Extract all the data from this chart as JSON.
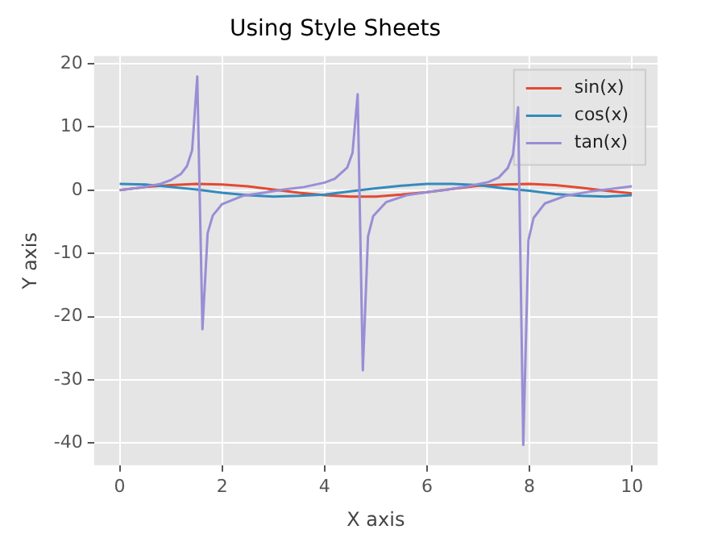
{
  "chart_data": {
    "type": "line",
    "title": "Using Style Sheets",
    "xlabel": "X axis",
    "ylabel": "Y axis",
    "xlim": [
      -0.5,
      10.5
    ],
    "xticks": [
      0,
      2,
      4,
      6,
      8,
      10
    ],
    "ylim": [
      -43.5,
      21.2
    ],
    "yticks": [
      -40,
      -30,
      -20,
      -10,
      0,
      10,
      20
    ],
    "grid": true,
    "legend": "top right",
    "series": [
      {
        "name": "sin(x)",
        "color": "#e24a33",
        "x": [
          0,
          0.5,
          1,
          1.5,
          2,
          2.5,
          3,
          3.5,
          4,
          4.5,
          5,
          5.5,
          6,
          6.5,
          7,
          7.5,
          8,
          8.5,
          9,
          9.5,
          10
        ],
        "values": [
          0,
          0.5,
          0.8,
          1.0,
          0.9,
          0.6,
          0.1,
          -0.4,
          -0.8,
          -1.0,
          -1.0,
          -0.7,
          -0.3,
          0.2,
          0.7,
          0.9,
          1.0,
          0.8,
          0.4,
          -0.1,
          -0.5
        ]
      },
      {
        "name": "cos(x)",
        "color": "#348abd",
        "x": [
          0,
          0.5,
          1,
          1.5,
          2,
          2.5,
          3,
          3.5,
          4,
          4.5,
          5,
          5.5,
          6,
          6.5,
          7,
          7.5,
          8,
          8.5,
          9,
          9.5,
          10
        ],
        "values": [
          1.0,
          0.9,
          0.5,
          0.1,
          -0.4,
          -0.8,
          -1.0,
          -0.9,
          -0.7,
          -0.2,
          0.3,
          0.7,
          1.0,
          1.0,
          0.8,
          0.3,
          -0.1,
          -0.6,
          -0.9,
          -1.0,
          -0.8
        ]
      },
      {
        "name": "tan(x)",
        "color": "#988ed5",
        "x": [
          0,
          0.4,
          0.8,
          1.0,
          1.2,
          1.313,
          1.414,
          1.515,
          1.616,
          1.717,
          1.818,
          2.0,
          2.4,
          2.8,
          3.2,
          3.6,
          4.0,
          4.2,
          4.444,
          4.545,
          4.646,
          4.747,
          4.848,
          4.949,
          5.2,
          5.6,
          6.0,
          6.4,
          6.8,
          7.2,
          7.4,
          7.576,
          7.677,
          7.778,
          7.879,
          7.98,
          8.08,
          8.3,
          8.7,
          9.2,
          9.6,
          10
        ],
        "values": [
          0,
          0.4,
          1.0,
          1.6,
          2.6,
          3.8,
          6.3,
          18.0,
          -22.0,
          -6.8,
          -4.0,
          -2.2,
          -0.9,
          -0.4,
          0.1,
          0.5,
          1.2,
          1.8,
          3.6,
          5.9,
          15.2,
          -28.5,
          -7.3,
          -4.1,
          -1.9,
          -0.8,
          -0.3,
          0.1,
          0.6,
          1.3,
          2.0,
          3.5,
          5.6,
          13.1,
          -40.3,
          -7.9,
          -4.4,
          -2.1,
          -0.9,
          -0.2,
          0.2,
          0.6
        ]
      }
    ]
  }
}
